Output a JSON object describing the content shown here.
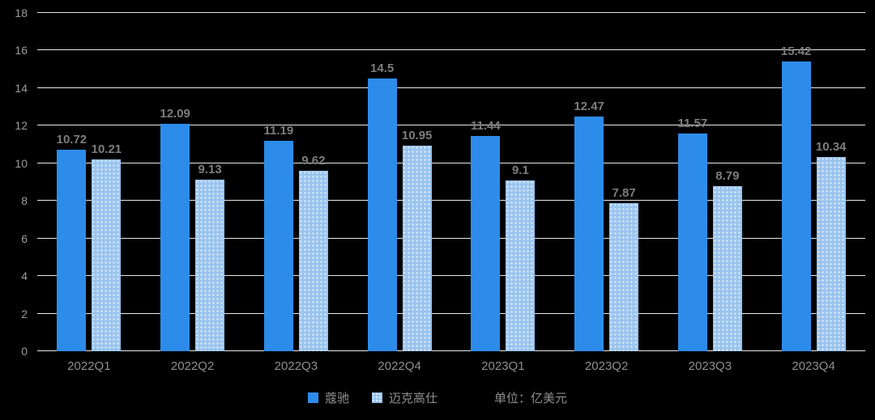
{
  "chart_data": {
    "type": "bar",
    "categories": [
      "2022Q1",
      "2022Q2",
      "2022Q3",
      "2022Q4",
      "2023Q1",
      "2023Q2",
      "2023Q3",
      "2023Q4"
    ],
    "series": [
      {
        "name": "蔻驰",
        "style": "solid",
        "color": "#2d8cea",
        "values": [
          10.72,
          12.09,
          11.19,
          14.5,
          11.44,
          12.47,
          11.57,
          15.42
        ]
      },
      {
        "name": "迈克高仕",
        "style": "dotted",
        "color": "#9ac4ee",
        "values": [
          10.21,
          9.13,
          9.62,
          10.95,
          9.1,
          7.87,
          8.79,
          10.34
        ]
      }
    ],
    "title": "",
    "xlabel": "",
    "ylabel": "",
    "ylim": [
      0,
      18
    ],
    "ytick_step": 2,
    "grid": true,
    "legend_position": "bottom",
    "unit_label": "单位：亿美元",
    "background_color": "#000000",
    "gridline_color": "#e8e8e8",
    "label_color": "#7d7d7d"
  }
}
